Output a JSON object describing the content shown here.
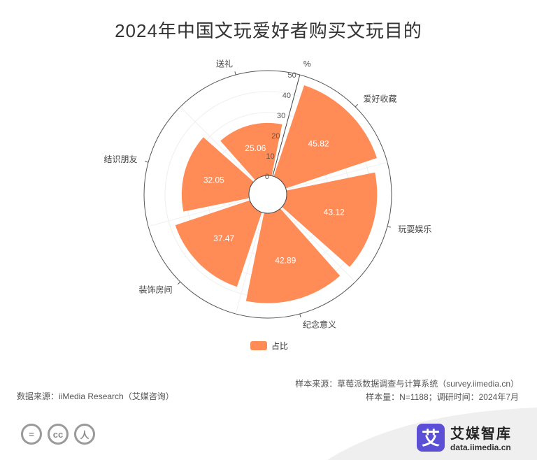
{
  "chart_data": {
    "type": "polar-bar",
    "title": "2024年中国文玩爱好者购买文玩目的",
    "unit": "%",
    "categories": [
      "爱好收藏",
      "玩耍娱乐",
      "纪念意义",
      "装饰房间",
      "结识朋友",
      "送礼"
    ],
    "series": [
      {
        "name": "占比",
        "values": [
          45.82,
          43.12,
          42.89,
          37.47,
          32.05,
          25.06
        ]
      }
    ],
    "radial_ticks": [
      "0",
      "10",
      "20",
      "30",
      "40",
      "50"
    ],
    "rmax": 50,
    "color": "#ff8c57"
  },
  "notes": {
    "sample_source": "样本来源：草莓派数据调查与计算系统（survey.iimedia.cn）",
    "sample_size": "样本量：N=1188；调研时间：2024年7月",
    "data_source": "数据来源：iiMedia Research（艾媒咨询）"
  },
  "brand": {
    "logo_char": "艾",
    "name": "艾媒智库",
    "url": "data.iimedia.cn"
  },
  "license": [
    "=",
    "cc",
    "人"
  ]
}
